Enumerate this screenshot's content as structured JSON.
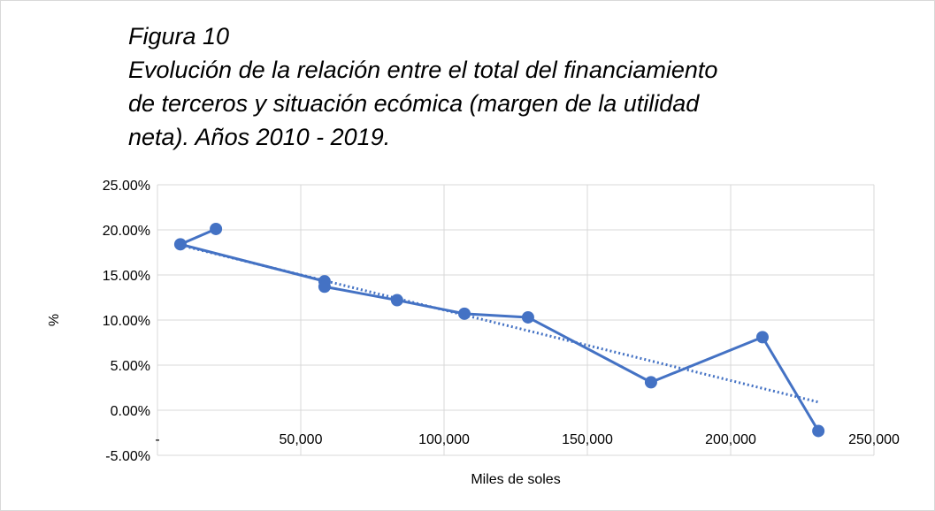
{
  "chart_data": {
    "type": "scatter",
    "label": "Figura 10",
    "title": [
      "Evolución de la relación entre el total del financiamiento",
      "de terceros y  situación ecómica (margen de la utilidad",
      "neta). Años 2010 - 2019."
    ],
    "xlabel": "Miles de soles",
    "ylabel": "%",
    "xlim": [
      0,
      250000
    ],
    "ylim": [
      -5,
      25
    ],
    "xticks": [
      {
        "value": 0,
        "label": "-"
      },
      {
        "value": 50000,
        "label": "50,000"
      },
      {
        "value": 100000,
        "label": "100,000"
      },
      {
        "value": 150000,
        "label": "150,000"
      },
      {
        "value": 200000,
        "label": "200,000"
      },
      {
        "value": 250000,
        "label": "250,000"
      }
    ],
    "yticks": [
      {
        "value": -5,
        "label": "-5.00%"
      },
      {
        "value": 0,
        "label": "0.00%"
      },
      {
        "value": 5,
        "label": "5.00%"
      },
      {
        "value": 10,
        "label": "10.00%"
      },
      {
        "value": 15,
        "label": "15.00%"
      },
      {
        "value": 20,
        "label": "20.00%"
      },
      {
        "value": 25,
        "label": "25.00%"
      }
    ],
    "grid": true,
    "series": [
      {
        "color": "#4472c4",
        "style": "solid",
        "markers": true,
        "x": [
          20400,
          8000,
          58300,
          58300,
          83600,
          107100,
          129300,
          172200,
          211100,
          230600
        ],
        "values": [
          20.1,
          18.4,
          14.3,
          13.7,
          12.2,
          10.7,
          10.3,
          3.1,
          8.1,
          -2.3
        ]
      },
      {
        "color": "#4472c4",
        "style": "dotted",
        "markers": false,
        "x": [
          8000,
          230600
        ],
        "values": [
          18.3,
          0.9
        ]
      }
    ]
  }
}
